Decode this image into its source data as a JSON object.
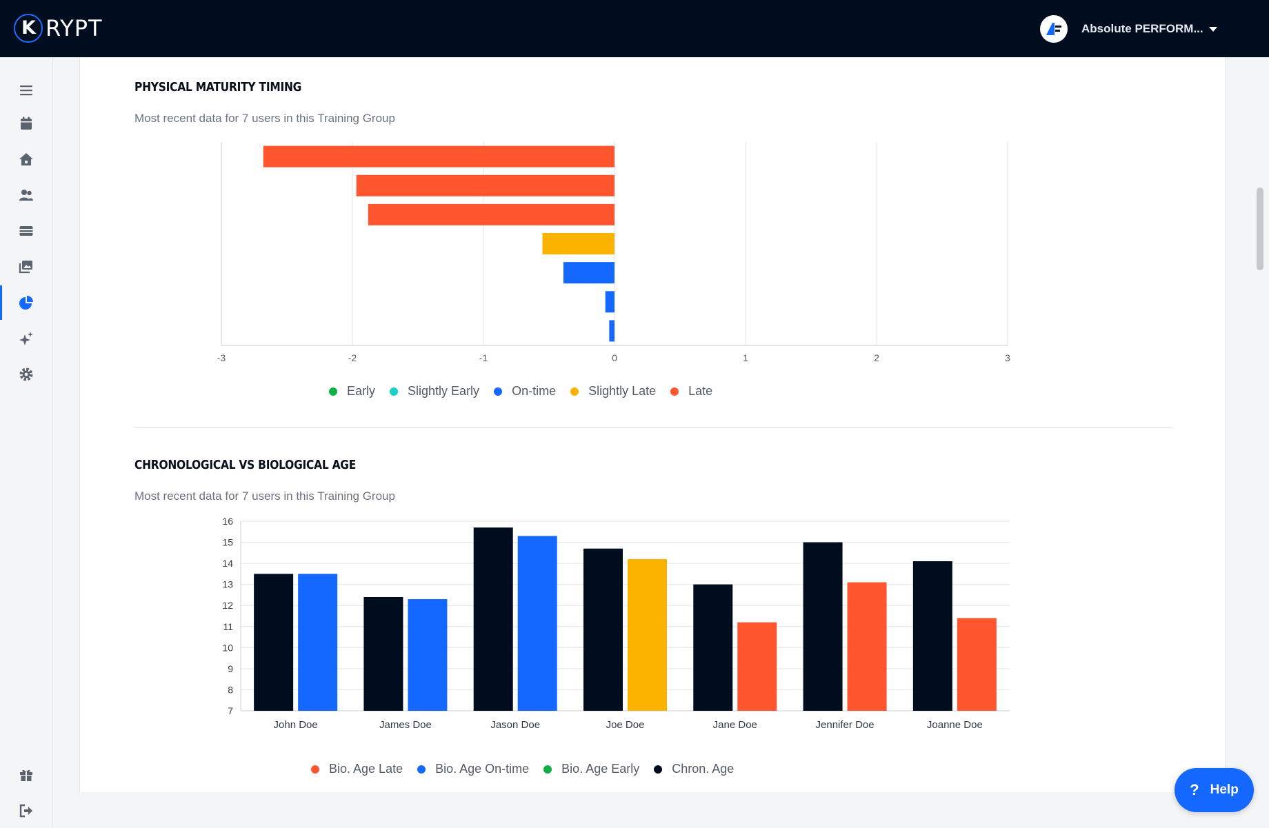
{
  "header": {
    "logo_text": "RYPT",
    "logo_glyph": "K",
    "account_name": "Absolute PERFORM...",
    "colors": {
      "bar": "#000d1f",
      "accent": "#1467ff"
    }
  },
  "sidebar": {
    "items": [
      {
        "name": "menu",
        "icon": "hamburger-icon"
      },
      {
        "name": "calendar",
        "icon": "calendar-icon"
      },
      {
        "name": "home",
        "icon": "home-icon"
      },
      {
        "name": "users",
        "icon": "users-icon"
      },
      {
        "name": "cards",
        "icon": "card-icon"
      },
      {
        "name": "media",
        "icon": "images-icon"
      },
      {
        "name": "reports",
        "icon": "pie-chart-icon",
        "active": true
      },
      {
        "name": "ai",
        "icon": "sparkles-icon"
      },
      {
        "name": "settings",
        "icon": "gear-icon"
      },
      {
        "name": "gifts",
        "icon": "gift-icon"
      },
      {
        "name": "logout",
        "icon": "logout-icon"
      }
    ]
  },
  "sections": {
    "maturity": {
      "title": "PHYSICAL MATURITY TIMING",
      "subtitle": "Most recent data for 7 users in this Training Group"
    },
    "age": {
      "title": "CHRONOLOGICAL VS BIOLOGICAL AGE",
      "subtitle": "Most recent data for 7 users in this Training Group"
    }
  },
  "chart_data": [
    {
      "type": "bar",
      "orientation": "horizontal",
      "title": "PHYSICAL MATURITY TIMING",
      "xlim": [
        -3,
        3
      ],
      "xticks": [
        "-3",
        "-2",
        "-1",
        "0",
        "1",
        "2",
        "3"
      ],
      "grid": "vertical",
      "legend": {
        "placement": "bottom",
        "entries": [
          {
            "label": "Early",
            "color": "#0fb04a"
          },
          {
            "label": "Slightly Early",
            "color": "#19d1c4"
          },
          {
            "label": "On-time",
            "color": "#1467ff"
          },
          {
            "label": "Slightly Late",
            "color": "#fbb300"
          },
          {
            "label": "Late",
            "color": "#ff5630"
          }
        ]
      },
      "bars": [
        {
          "value": -2.68,
          "category": "Late",
          "color": "#ff5630"
        },
        {
          "value": -1.97,
          "category": "Late",
          "color": "#ff5630"
        },
        {
          "value": -1.88,
          "category": "Late",
          "color": "#ff5630"
        },
        {
          "value": -0.55,
          "category": "Slightly Late",
          "color": "#fbb300"
        },
        {
          "value": -0.39,
          "category": "On-time",
          "color": "#1467ff"
        },
        {
          "value": -0.07,
          "category": "On-time",
          "color": "#1467ff"
        },
        {
          "value": -0.04,
          "category": "On-time",
          "color": "#1467ff"
        }
      ]
    },
    {
      "type": "bar",
      "title": "CHRONOLOGICAL VS BIOLOGICAL AGE",
      "categories": [
        "John Doe",
        "James Doe",
        "Jason Doe",
        "Joe Doe",
        "Jane Doe",
        "Jennifer Doe",
        "Joanne Doe"
      ],
      "ylim": [
        7,
        16
      ],
      "yticks": [
        "7",
        "8",
        "9",
        "10",
        "11",
        "12",
        "13",
        "14",
        "15",
        "16"
      ],
      "grid": "horizontal",
      "series": [
        {
          "name": "Chron. Age",
          "values": [
            13.5,
            12.4,
            15.7,
            14.7,
            13.0,
            15.0,
            14.1
          ],
          "colors": [
            "#000d1f",
            "#000d1f",
            "#000d1f",
            "#000d1f",
            "#000d1f",
            "#000d1f",
            "#000d1f"
          ]
        },
        {
          "name": "Bio. Age",
          "values": [
            13.5,
            12.3,
            15.3,
            14.2,
            11.2,
            13.1,
            11.4
          ],
          "colors": [
            "#1467ff",
            "#1467ff",
            "#1467ff",
            "#fbb300",
            "#ff5630",
            "#ff5630",
            "#ff5630"
          ]
        }
      ],
      "legend": {
        "placement": "bottom",
        "entries": [
          {
            "label": "Bio. Age Late",
            "color": "#ff5630"
          },
          {
            "label": "Bio. Age On-time",
            "color": "#1467ff"
          },
          {
            "label": "Bio. Age Early",
            "color": "#0fb04a"
          },
          {
            "label": "Chron. Age",
            "color": "#000d1f"
          }
        ]
      }
    }
  ],
  "help": {
    "label": "Help",
    "glyph": "?"
  }
}
